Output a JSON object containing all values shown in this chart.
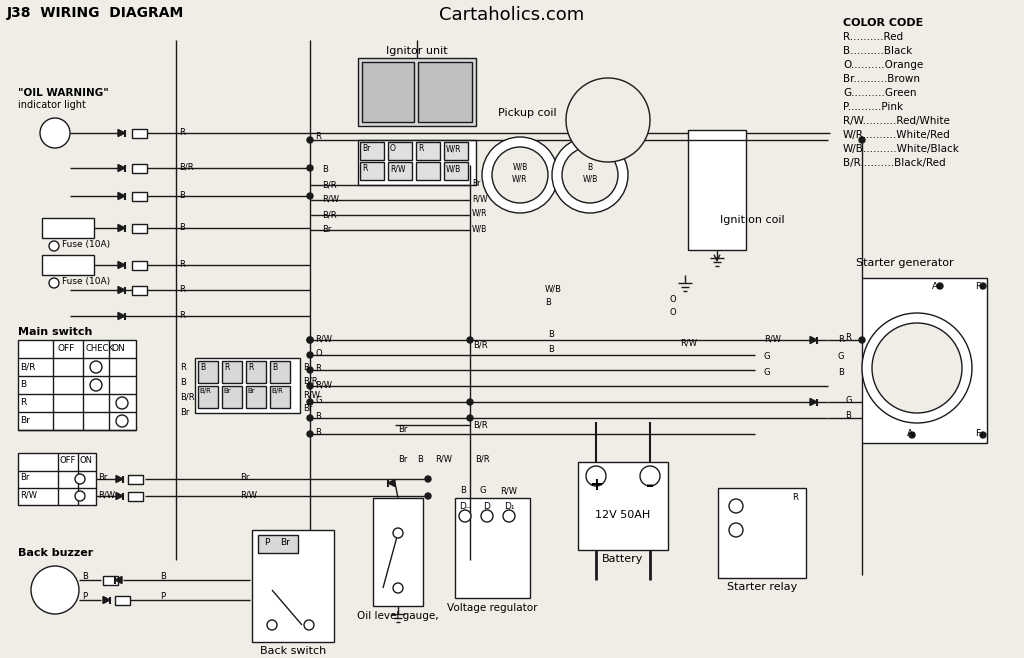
{
  "title": "J38  WIRING  DIAGRAM",
  "website": "Cartaholics.com",
  "bg_color": "#f0ede6",
  "line_color": "#1a1a1a",
  "color_code_title": "COLOR CODE",
  "color_codes": [
    [
      "R",
      "Red"
    ],
    [
      "B",
      "Black"
    ],
    [
      "O",
      "Orange"
    ],
    [
      "Br",
      "Brown"
    ],
    [
      "G",
      "Green"
    ],
    [
      "P",
      "Pink"
    ],
    [
      "R/W",
      "Red/White"
    ],
    [
      "W/R",
      "White/Red"
    ],
    [
      "W/B",
      "White/Black"
    ],
    [
      "B/R",
      "Black/Red"
    ]
  ],
  "component_labels": {
    "oil_warning_1": "\"OIL WARNING\"",
    "oil_warning_2": "indicator light",
    "ignitor_unit": "Ignitor unit",
    "pickup_coil": "Pickup coil",
    "ignition_coil": "Ignition coil",
    "starter_generator": "Starter generator",
    "main_switch": "Main switch",
    "back_buzzer": "Back buzzer",
    "back_switch": "Back switch",
    "oil_level_gauge": "Oil level gauge,",
    "voltage_regulator": "Voltage regulator",
    "battery": "12V 50AH",
    "battery_label": "Battery",
    "starter_relay": "Starter relay",
    "fuse1": "Fuse (10A)",
    "fuse2": "Fuse (10A)"
  }
}
